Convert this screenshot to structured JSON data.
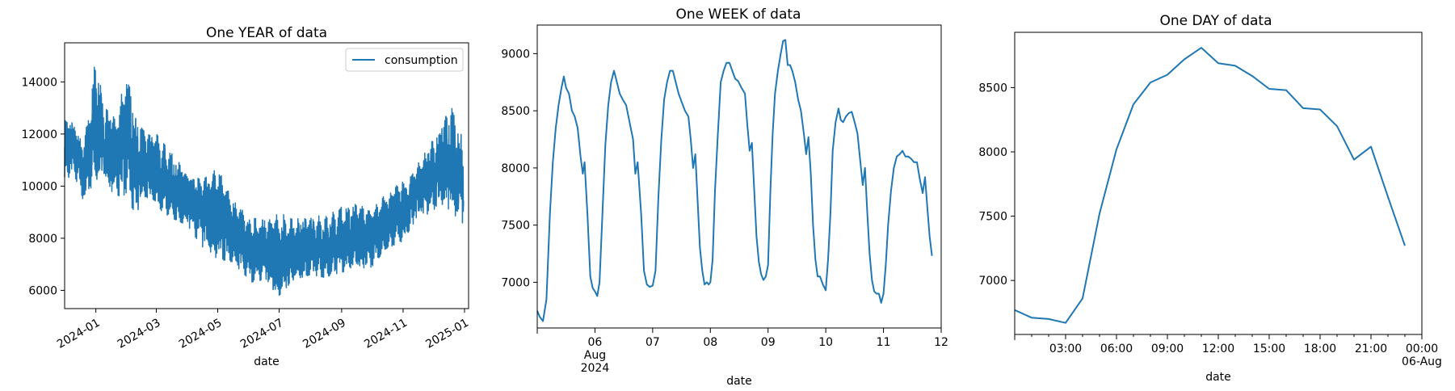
{
  "chart_data": [
    {
      "type": "line",
      "title": "One YEAR of data",
      "xlabel": "date",
      "ylabel": "",
      "x_type": "date",
      "xlim": [
        "2023-12-01",
        "2025-01-05"
      ],
      "ylim": [
        5300,
        15500
      ],
      "xticks": [
        "2024-01",
        "2024-03",
        "2024-05",
        "2024-07",
        "2024-09",
        "2024-11",
        "2025-01"
      ],
      "xtick_dates": [
        "2024-01-01",
        "2024-03-01",
        "2024-05-01",
        "2024-07-01",
        "2024-09-01",
        "2024-11-01",
        "2025-01-01"
      ],
      "xtick_rotation": 30,
      "yticks": [
        6000,
        8000,
        10000,
        12000,
        14000
      ],
      "grid": false,
      "legend": {
        "placement": "top-right",
        "entries": [
          "consumption"
        ]
      },
      "series": [
        {
          "name": "consumption",
          "color": "#1f77b4",
          "envelope": {
            "dates": [
              "2023-12-01",
              "2023-12-10",
              "2023-12-20",
              "2024-01-01",
              "2024-01-10",
              "2024-01-20",
              "2024-02-01",
              "2024-02-10",
              "2024-02-20",
              "2024-03-01",
              "2024-03-15",
              "2024-04-01",
              "2024-04-15",
              "2024-05-01",
              "2024-05-15",
              "2024-06-01",
              "2024-06-15",
              "2024-07-01",
              "2024-07-15",
              "2024-08-01",
              "2024-08-15",
              "2024-09-01",
              "2024-09-15",
              "2024-10-01",
              "2024-10-15",
              "2024-11-01",
              "2024-11-15",
              "2024-12-01",
              "2024-12-10",
              "2024-12-20",
              "2024-12-31"
            ],
            "low": [
              10200,
              10500,
              9400,
              10300,
              10000,
              9700,
              9500,
              8900,
              9600,
              9200,
              8800,
              8500,
              7700,
              7200,
              7100,
              6300,
              6400,
              5800,
              6400,
              6600,
              6500,
              6700,
              6800,
              6900,
              7600,
              7900,
              8800,
              9000,
              9300,
              9000,
              8400
            ],
            "high": [
              12700,
              12500,
              11500,
              15000,
              13000,
              12600,
              14300,
              12500,
              12000,
              12000,
              11300,
              10600,
              10200,
              10700,
              9500,
              8800,
              8700,
              9000,
              8700,
              9000,
              8800,
              9200,
              9300,
              9100,
              9700,
              10200,
              10800,
              11800,
              12500,
              13000,
              11700
            ],
            "mid": [
              11400,
              11500,
              10500,
              12500,
              11500,
              11100,
              12000,
              10800,
              10800,
              10600,
              10000,
              9500,
              9000,
              8900,
              8300,
              7600,
              7500,
              7300,
              7500,
              7700,
              7600,
              7900,
              8000,
              8000,
              8600,
              9000,
              9800,
              10400,
              10900,
              11000,
              10000
            ]
          }
        }
      ]
    },
    {
      "type": "line",
      "title": "One WEEK of data",
      "xlabel": "date",
      "ylabel": "",
      "x_unit": "day of month (Aug 2024)",
      "xlim": [
        5,
        12
      ],
      "ylim": [
        6600,
        9250
      ],
      "xticks": [
        "06",
        "07",
        "08",
        "09",
        "10",
        "11",
        "12"
      ],
      "xtick_values": [
        6,
        7,
        8,
        9,
        10,
        11,
        12
      ],
      "xtick_sublabel": {
        "tick": "06",
        "lines": [
          "Aug",
          "2024"
        ]
      },
      "yticks": [
        7000,
        7500,
        8000,
        8500,
        9000
      ],
      "grid": false,
      "series": [
        {
          "color": "#1f77b4",
          "points": [
            [
              5.0,
              6750
            ],
            [
              5.04,
              6700
            ],
            [
              5.1,
              6660
            ],
            [
              5.16,
              6850
            ],
            [
              5.22,
              7600
            ],
            [
              5.27,
              8050
            ],
            [
              5.32,
              8350
            ],
            [
              5.37,
              8550
            ],
            [
              5.42,
              8700
            ],
            [
              5.46,
              8800
            ],
            [
              5.5,
              8700
            ],
            [
              5.55,
              8650
            ],
            [
              5.6,
              8500
            ],
            [
              5.65,
              8450
            ],
            [
              5.7,
              8350
            ],
            [
              5.75,
              8100
            ],
            [
              5.79,
              7950
            ],
            [
              5.82,
              8050
            ],
            [
              5.87,
              7600
            ],
            [
              5.92,
              7050
            ],
            [
              5.96,
              6950
            ],
            [
              6.0,
              6920
            ],
            [
              6.04,
              6880
            ],
            [
              6.08,
              7000
            ],
            [
              6.13,
              7600
            ],
            [
              6.18,
              8200
            ],
            [
              6.23,
              8550
            ],
            [
              6.28,
              8750
            ],
            [
              6.33,
              8850
            ],
            [
              6.38,
              8750
            ],
            [
              6.43,
              8650
            ],
            [
              6.48,
              8600
            ],
            [
              6.54,
              8550
            ],
            [
              6.6,
              8400
            ],
            [
              6.66,
              8250
            ],
            [
              6.7,
              7950
            ],
            [
              6.74,
              8050
            ],
            [
              6.8,
              7600
            ],
            [
              6.85,
              7100
            ],
            [
              6.9,
              6980
            ],
            [
              6.95,
              6960
            ],
            [
              7.0,
              6970
            ],
            [
              7.05,
              7100
            ],
            [
              7.1,
              7750
            ],
            [
              7.15,
              8250
            ],
            [
              7.2,
              8600
            ],
            [
              7.25,
              8750
            ],
            [
              7.3,
              8850
            ],
            [
              7.35,
              8850
            ],
            [
              7.4,
              8750
            ],
            [
              7.45,
              8650
            ],
            [
              7.5,
              8580
            ],
            [
              7.56,
              8500
            ],
            [
              7.62,
              8450
            ],
            [
              7.66,
              8250
            ],
            [
              7.7,
              8000
            ],
            [
              7.74,
              8120
            ],
            [
              7.78,
              7700
            ],
            [
              7.82,
              7300
            ],
            [
              7.86,
              7100
            ],
            [
              7.9,
              6980
            ],
            [
              7.94,
              7000
            ],
            [
              7.97,
              6980
            ],
            [
              8.0,
              7000
            ],
            [
              8.04,
              7200
            ],
            [
              8.08,
              7800
            ],
            [
              8.13,
              8300
            ],
            [
              8.18,
              8750
            ],
            [
              8.23,
              8850
            ],
            [
              8.28,
              8920
            ],
            [
              8.33,
              8920
            ],
            [
              8.38,
              8850
            ],
            [
              8.43,
              8780
            ],
            [
              8.48,
              8760
            ],
            [
              8.54,
              8700
            ],
            [
              8.6,
              8650
            ],
            [
              8.64,
              8380
            ],
            [
              8.68,
              8150
            ],
            [
              8.72,
              8220
            ],
            [
              8.76,
              7800
            ],
            [
              8.8,
              7400
            ],
            [
              8.84,
              7180
            ],
            [
              8.88,
              7070
            ],
            [
              8.92,
              7020
            ],
            [
              8.96,
              7050
            ],
            [
              9.0,
              7150
            ],
            [
              9.04,
              7800
            ],
            [
              9.08,
              8300
            ],
            [
              9.12,
              8650
            ],
            [
              9.17,
              8850
            ],
            [
              9.22,
              9000
            ],
            [
              9.26,
              9110
            ],
            [
              9.3,
              9120
            ],
            [
              9.34,
              8900
            ],
            [
              9.38,
              8900
            ],
            [
              9.42,
              8850
            ],
            [
              9.47,
              8750
            ],
            [
              9.52,
              8600
            ],
            [
              9.57,
              8500
            ],
            [
              9.62,
              8300
            ],
            [
              9.66,
              8120
            ],
            [
              9.7,
              8270
            ],
            [
              9.74,
              7950
            ],
            [
              9.78,
              7500
            ],
            [
              9.82,
              7200
            ],
            [
              9.86,
              7050
            ],
            [
              9.9,
              7050
            ],
            [
              9.95,
              6980
            ],
            [
              10.0,
              6930
            ],
            [
              10.04,
              7200
            ],
            [
              10.08,
              7600
            ],
            [
              10.12,
              8150
            ],
            [
              10.17,
              8400
            ],
            [
              10.22,
              8520
            ],
            [
              10.26,
              8420
            ],
            [
              10.3,
              8400
            ],
            [
              10.35,
              8450
            ],
            [
              10.4,
              8480
            ],
            [
              10.45,
              8490
            ],
            [
              10.5,
              8400
            ],
            [
              10.55,
              8300
            ],
            [
              10.6,
              8050
            ],
            [
              10.64,
              7850
            ],
            [
              10.68,
              8000
            ],
            [
              10.72,
              7600
            ],
            [
              10.76,
              7250
            ],
            [
              10.8,
              7020
            ],
            [
              10.84,
              6920
            ],
            [
              10.88,
              6900
            ],
            [
              10.92,
              6900
            ],
            [
              10.96,
              6820
            ],
            [
              11.0,
              6900
            ],
            [
              11.04,
              7150
            ],
            [
              11.08,
              7500
            ],
            [
              11.13,
              7800
            ],
            [
              11.18,
              8000
            ],
            [
              11.23,
              8100
            ],
            [
              11.28,
              8120
            ],
            [
              11.33,
              8150
            ],
            [
              11.38,
              8100
            ],
            [
              11.43,
              8100
            ],
            [
              11.48,
              8080
            ],
            [
              11.53,
              8050
            ],
            [
              11.58,
              8050
            ],
            [
              11.63,
              7900
            ],
            [
              11.68,
              7780
            ],
            [
              11.72,
              7920
            ],
            [
              11.76,
              7650
            ],
            [
              11.8,
              7400
            ],
            [
              11.84,
              7230
            ]
          ]
        }
      ]
    },
    {
      "type": "line",
      "title": "One DAY of data",
      "xlabel": "date",
      "ylabel": "",
      "x_unit": "hour of day (Aug 5-6)",
      "xlim": [
        0,
        24
      ],
      "ylim": [
        6580,
        8930
      ],
      "xticks": [
        "03:00",
        "06:00",
        "09:00",
        "12:00",
        "15:00",
        "18:00",
        "21:00",
        "00:00"
      ],
      "xtick_values": [
        3,
        6,
        9,
        12,
        15,
        18,
        21,
        24
      ],
      "xtick_sublabel": {
        "tick": "00:00",
        "lines": [
          "06-Aug"
        ]
      },
      "yticks": [
        7000,
        7500,
        8000,
        8500
      ],
      "grid": false,
      "series": [
        {
          "color": "#1f77b4",
          "points": [
            [
              0,
              6770
            ],
            [
              1,
              6710
            ],
            [
              2,
              6700
            ],
            [
              3,
              6670
            ],
            [
              4,
              6860
            ],
            [
              5,
              7520
            ],
            [
              6,
              8020
            ],
            [
              7,
              8370
            ],
            [
              8,
              8540
            ],
            [
              9,
              8600
            ],
            [
              10,
              8720
            ],
            [
              11,
              8810
            ],
            [
              12,
              8690
            ],
            [
              13,
              8670
            ],
            [
              14,
              8590
            ],
            [
              15,
              8490
            ],
            [
              16,
              8480
            ],
            [
              17,
              8340
            ],
            [
              18,
              8330
            ],
            [
              19,
              8200
            ],
            [
              20,
              7940
            ],
            [
              21,
              8040
            ],
            [
              22,
              7650
            ],
            [
              23,
              7270
            ]
          ]
        }
      ]
    }
  ]
}
